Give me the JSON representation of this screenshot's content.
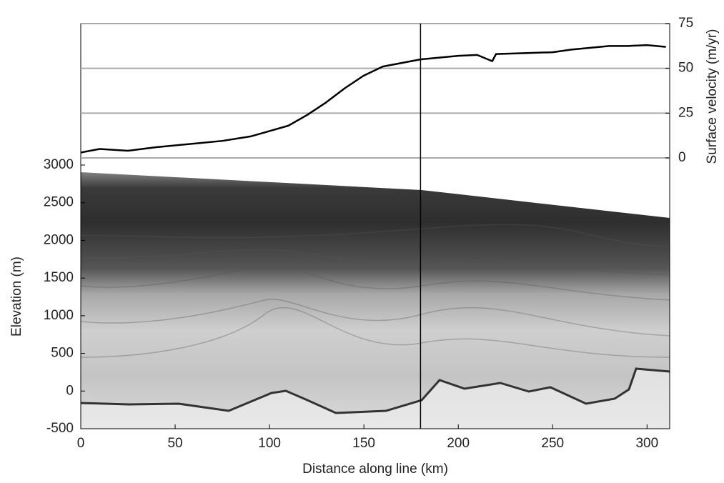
{
  "chart_data": {
    "type": "line",
    "xlabel": "Distance along line (km)",
    "ylabel": "Elevation (m)",
    "y2label": "Surface velocity (m/yr)",
    "xlim": [
      0,
      312
    ],
    "xticks": [
      0,
      50,
      100,
      150,
      200,
      250,
      300
    ],
    "ylim": [
      -500,
      3000
    ],
    "yticks": [
      -500,
      0,
      500,
      1000,
      1500,
      2000,
      2500,
      3000
    ],
    "y2lim": [
      0,
      75
    ],
    "y2ticks": [
      0,
      25,
      50,
      75
    ],
    "grid": true,
    "vline_x": 180,
    "axis": "y2",
    "color": "#000000",
    "x": [
      0,
      10,
      25,
      40,
      50,
      60,
      75,
      90,
      100,
      110,
      120,
      130,
      140,
      150,
      160,
      170,
      180,
      190,
      200,
      210,
      218,
      220,
      235,
      250,
      260,
      270,
      280,
      290,
      300,
      310
    ],
    "values": [
      3,
      5,
      4,
      6,
      7,
      8,
      9.5,
      12,
      15,
      18,
      24,
      31,
      39,
      46,
      51,
      53,
      55,
      56,
      57,
      57.5,
      54,
      58,
      58.5,
      59,
      60.5,
      61.5,
      62.5,
      62.5,
      63,
      62
    ]
  }
}
